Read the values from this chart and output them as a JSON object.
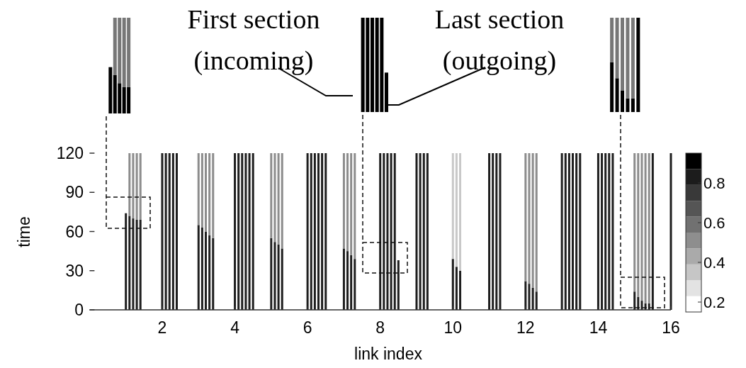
{
  "chart_data": [
    {
      "type": "bar",
      "stacked": true,
      "xlabel": "link index",
      "ylabel": "time",
      "annotations": [
        "First section (incoming)",
        "Last section (outgoing)"
      ],
      "x": [
        1.0,
        1.1,
        1.2,
        1.3,
        1.4,
        2.0,
        2.1,
        2.2,
        2.3,
        2.4,
        3.0,
        3.1,
        3.2,
        3.3,
        3.4,
        4.0,
        4.1,
        4.2,
        4.3,
        4.4,
        4.5,
        5.0,
        5.1,
        5.2,
        5.3,
        6.0,
        6.1,
        6.2,
        6.3,
        6.4,
        6.5,
        7.0,
        7.1,
        7.2,
        7.3,
        8.0,
        8.1,
        8.2,
        8.3,
        8.4,
        8.5,
        9.0,
        9.1,
        9.2,
        9.3,
        10.0,
        10.1,
        10.2,
        11.0,
        11.1,
        11.2,
        11.3,
        12.0,
        12.1,
        12.2,
        12.3,
        13.0,
        13.1,
        13.2,
        13.3,
        13.4,
        13.5,
        14.0,
        14.1,
        14.2,
        14.3,
        14.4,
        15.0,
        15.1,
        15.2,
        15.3,
        15.4,
        15.5,
        16.0
      ],
      "series": [
        {
          "color": "#1e1e1e",
          "values": [
            74,
            72,
            70,
            69,
            69,
            120,
            120,
            120,
            120,
            120,
            65,
            63,
            60,
            57,
            55,
            120,
            120,
            120,
            120,
            120,
            120,
            55,
            52,
            50,
            47,
            120,
            120,
            120,
            120,
            120,
            120,
            47,
            45,
            42,
            39,
            120,
            120,
            120,
            120,
            120,
            38,
            120,
            120,
            120,
            120,
            39,
            33,
            30,
            120,
            120,
            120,
            120,
            22,
            20,
            17,
            14,
            120,
            120,
            120,
            120,
            120,
            120,
            120,
            120,
            120,
            120,
            120,
            14,
            10,
            7,
            5,
            5,
            120,
            120
          ]
        },
        {
          "colors": [
            "#8c8c8c",
            "#8c8c8c",
            "#8c8c8c",
            "#8c8c8c",
            "#8c8c8c",
            "#8c8c8c",
            "#8c8c8c",
            "#8c8c8c",
            "#8c8c8c",
            "#8c8c8c",
            "#8c8c8c",
            "#8c8c8c",
            "#8c8c8c",
            "#8c8c8c",
            "#8c8c8c",
            "#8c8c8c",
            "#8c8c8c",
            "#8c8c8c",
            "#8c8c8c",
            "#8c8c8c",
            "#8c8c8c",
            "#8c8c8c",
            "#8c8c8c",
            "#8c8c8c",
            "#8c8c8c",
            "#8c8c8c",
            "#8c8c8c",
            "#8c8c8c",
            "#8c8c8c",
            "#8c8c8c",
            "#8c8c8c",
            "#8c8c8c",
            "#8c8c8c",
            "#8c8c8c",
            "#8c8c8c",
            "#8c8c8c",
            "#8c8c8c",
            "#8c8c8c",
            "#8c8c8c",
            "#8c8c8c",
            "#8c8c8c",
            "#8c8c8c",
            "#8c8c8c",
            "#8c8c8c",
            "#8c8c8c",
            "#c8c8c8",
            "#c8c8c8",
            "#c8c8c8",
            "#8c8c8c",
            "#8c8c8c",
            "#8c8c8c",
            "#8c8c8c",
            "#8c8c8c",
            "#8c8c8c",
            "#8c8c8c",
            "#8c8c8c",
            "#8c8c8c",
            "#8c8c8c",
            "#8c8c8c",
            "#8c8c8c",
            "#8c8c8c",
            "#8c8c8c",
            "#8c8c8c",
            "#8c8c8c",
            "#8c8c8c",
            "#8c8c8c",
            "#8c8c8c",
            "#8c8c8c",
            "#8c8c8c",
            "#8c8c8c",
            "#8c8c8c",
            "#8c8c8c",
            "#8c8c8c",
            "#8c8c8c"
          ],
          "values": [
            0,
            48,
            50,
            51,
            51,
            0,
            0,
            0,
            0,
            0,
            55,
            57,
            60,
            63,
            65,
            0,
            0,
            0,
            0,
            0,
            0,
            65,
            68,
            70,
            73,
            0,
            0,
            0,
            0,
            0,
            0,
            73,
            75,
            78,
            81,
            0,
            0,
            0,
            0,
            0,
            0,
            0,
            0,
            0,
            0,
            81,
            87,
            90,
            0,
            0,
            0,
            0,
            98,
            100,
            103,
            106,
            0,
            0,
            0,
            0,
            0,
            0,
            0,
            0,
            0,
            0,
            0,
            106,
            110,
            113,
            115,
            115,
            0,
            0
          ]
        }
      ],
      "xlim": [
        0,
        16
      ],
      "xticks": [
        2,
        4,
        6,
        8,
        10,
        12,
        14,
        16
      ],
      "ylim": [
        0,
        120
      ],
      "yticks": [
        0,
        30,
        60,
        90,
        120
      ],
      "clim": [
        0.15,
        0.95
      ],
      "cticks": [
        0.2,
        0.4,
        0.6,
        0.8
      ],
      "grid": false
    }
  ]
}
